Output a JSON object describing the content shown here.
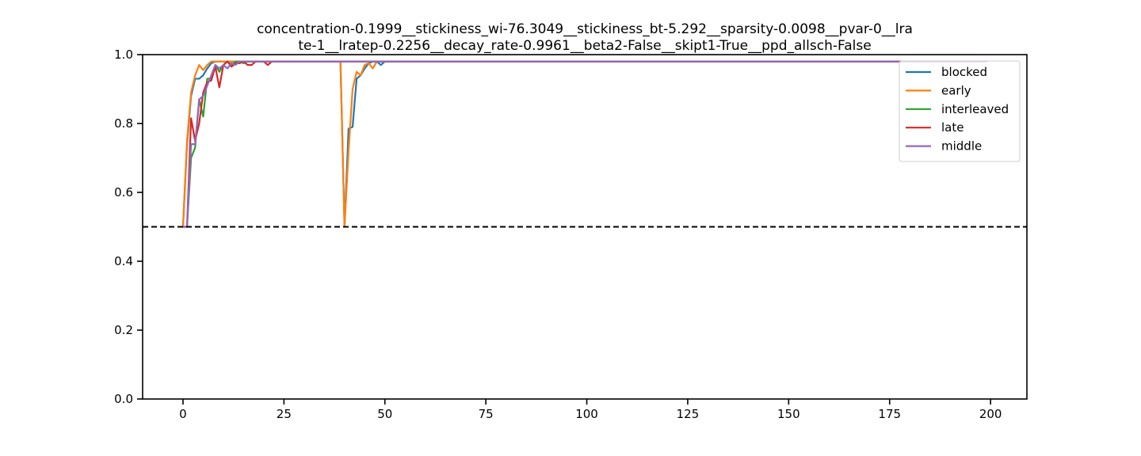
{
  "chart_data": {
    "type": "line",
    "title_lines": [
      "concentration-0.1999__stickiness_wi-76.3049__stickiness_bt-5.292__sparsity-0.0098__pvar-0__lra",
      "te-1__lratep-0.2256__decay_rate-0.9961__beta2-False__skipt1-True__ppd_allsch-False"
    ],
    "xlabel": "",
    "ylabel": "",
    "xlim": [
      -10,
      209
    ],
    "ylim": [
      0.0,
      1.0
    ],
    "x_ticks": [
      0,
      25,
      50,
      75,
      100,
      125,
      150,
      175,
      200
    ],
    "y_ticks": [
      0.0,
      0.2,
      0.4,
      0.6,
      0.8,
      1.0
    ],
    "x_tick_labels": [
      "0",
      "25",
      "50",
      "75",
      "100",
      "125",
      "150",
      "175",
      "200"
    ],
    "y_tick_labels": [
      "0.0",
      "0.2",
      "0.4",
      "0.6",
      "0.8",
      "1.0"
    ],
    "grid": false,
    "legend_position": "top-right",
    "reference_line": {
      "y": 0.5,
      "style": "dashed",
      "color": "#000000"
    },
    "series": [
      {
        "name": "blocked",
        "color": "#1f77b4",
        "points": [
          [
            0,
            0.5
          ],
          [
            1,
            0.74
          ],
          [
            2,
            0.88
          ],
          [
            3,
            0.93
          ],
          [
            4,
            0.93
          ],
          [
            5,
            0.94
          ],
          [
            6,
            0.96
          ],
          [
            7,
            0.975
          ],
          [
            8,
            0.98
          ],
          [
            10,
            0.98
          ],
          [
            12,
            0.98
          ],
          [
            15,
            0.98
          ],
          [
            20,
            0.98
          ],
          [
            25,
            0.98
          ],
          [
            30,
            0.98
          ],
          [
            35,
            0.98
          ],
          [
            39,
            0.98
          ],
          [
            40,
            0.5
          ],
          [
            41,
            0.785
          ],
          [
            42,
            0.79
          ],
          [
            43,
            0.93
          ],
          [
            44,
            0.94
          ],
          [
            45,
            0.96
          ],
          [
            46,
            0.975
          ],
          [
            47,
            0.98
          ],
          [
            48,
            0.98
          ],
          [
            49,
            0.97
          ],
          [
            50,
            0.98
          ],
          [
            60,
            0.98
          ],
          [
            100,
            0.98
          ],
          [
            150,
            0.98
          ],
          [
            199,
            0.98
          ]
        ]
      },
      {
        "name": "early",
        "color": "#ff7f0e",
        "points": [
          [
            0,
            0.5
          ],
          [
            1,
            0.75
          ],
          [
            2,
            0.89
          ],
          [
            3,
            0.94
          ],
          [
            4,
            0.97
          ],
          [
            5,
            0.955
          ],
          [
            6,
            0.97
          ],
          [
            7,
            0.98
          ],
          [
            8,
            0.98
          ],
          [
            10,
            0.98
          ],
          [
            15,
            0.98
          ],
          [
            20,
            0.98
          ],
          [
            25,
            0.98
          ],
          [
            30,
            0.98
          ],
          [
            35,
            0.98
          ],
          [
            39,
            0.98
          ],
          [
            40,
            0.5
          ],
          [
            41,
            0.72
          ],
          [
            42,
            0.9
          ],
          [
            43,
            0.95
          ],
          [
            44,
            0.94
          ],
          [
            45,
            0.97
          ],
          [
            46,
            0.975
          ],
          [
            47,
            0.96
          ],
          [
            48,
            0.98
          ],
          [
            49,
            0.98
          ],
          [
            50,
            0.98
          ],
          [
            60,
            0.98
          ],
          [
            100,
            0.98
          ],
          [
            150,
            0.98
          ],
          [
            199,
            0.98
          ]
        ]
      },
      {
        "name": "interleaved",
        "color": "#2ca02c",
        "points": [
          [
            0,
            0.5
          ],
          [
            1,
            0.5
          ],
          [
            2,
            0.7
          ],
          [
            3,
            0.73
          ],
          [
            4,
            0.87
          ],
          [
            5,
            0.82
          ],
          [
            6,
            0.93
          ],
          [
            7,
            0.93
          ],
          [
            8,
            0.97
          ],
          [
            9,
            0.95
          ],
          [
            10,
            0.97
          ],
          [
            11,
            0.98
          ],
          [
            12,
            0.97
          ],
          [
            13,
            0.98
          ],
          [
            14,
            0.98
          ],
          [
            15,
            0.975
          ],
          [
            16,
            0.98
          ],
          [
            18,
            0.98
          ],
          [
            20,
            0.98
          ],
          [
            25,
            0.98
          ],
          [
            50,
            0.98
          ],
          [
            100,
            0.98
          ],
          [
            150,
            0.98
          ],
          [
            199,
            0.98
          ]
        ]
      },
      {
        "name": "late",
        "color": "#d62728",
        "points": [
          [
            0,
            0.5
          ],
          [
            1,
            0.5
          ],
          [
            2,
            0.815
          ],
          [
            3,
            0.75
          ],
          [
            4,
            0.8
          ],
          [
            5,
            0.89
          ],
          [
            6,
            0.92
          ],
          [
            7,
            0.925
          ],
          [
            8,
            0.965
          ],
          [
            9,
            0.905
          ],
          [
            10,
            0.97
          ],
          [
            11,
            0.98
          ],
          [
            12,
            0.965
          ],
          [
            13,
            0.975
          ],
          [
            14,
            0.975
          ],
          [
            15,
            0.98
          ],
          [
            16,
            0.97
          ],
          [
            17,
            0.97
          ],
          [
            18,
            0.98
          ],
          [
            19,
            0.98
          ],
          [
            20,
            0.98
          ],
          [
            21,
            0.97
          ],
          [
            22,
            0.98
          ],
          [
            25,
            0.98
          ],
          [
            50,
            0.98
          ],
          [
            100,
            0.98
          ],
          [
            150,
            0.98
          ],
          [
            199,
            0.98
          ]
        ]
      },
      {
        "name": "middle",
        "color": "#9467bd",
        "points": [
          [
            0,
            0.5
          ],
          [
            1,
            0.5
          ],
          [
            2,
            0.74
          ],
          [
            3,
            0.74
          ],
          [
            4,
            0.87
          ],
          [
            5,
            0.88
          ],
          [
            6,
            0.91
          ],
          [
            7,
            0.94
          ],
          [
            8,
            0.97
          ],
          [
            9,
            0.96
          ],
          [
            10,
            0.97
          ],
          [
            11,
            0.96
          ],
          [
            12,
            0.975
          ],
          [
            13,
            0.97
          ],
          [
            14,
            0.98
          ],
          [
            16,
            0.98
          ],
          [
            18,
            0.98
          ],
          [
            20,
            0.98
          ],
          [
            25,
            0.98
          ],
          [
            50,
            0.98
          ],
          [
            100,
            0.98
          ],
          [
            150,
            0.98
          ],
          [
            199,
            0.98
          ]
        ]
      }
    ]
  }
}
